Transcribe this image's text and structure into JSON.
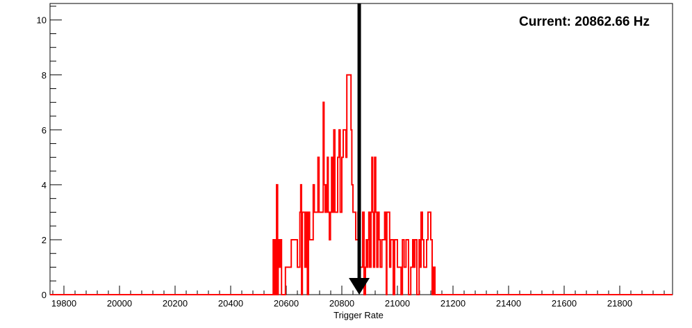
{
  "chart_data": {
    "type": "histogram",
    "title": "",
    "xlabel": "Trigger Rate",
    "ylabel": "",
    "xlim": [
      19750,
      21990
    ],
    "ylim": [
      0,
      10.6
    ],
    "xticks": [
      19800,
      20000,
      20200,
      20400,
      20600,
      20800,
      21000,
      21200,
      21400,
      21600,
      21800
    ],
    "yticks": [
      0,
      2,
      4,
      6,
      8,
      10
    ],
    "grid": false,
    "legend": "none",
    "series": [
      {
        "color": "#ff0000",
        "bin_width": 5,
        "points": [
          [
            19750,
            0
          ],
          [
            20552,
            0
          ],
          [
            20553,
            2
          ],
          [
            20557,
            0
          ],
          [
            20560,
            2
          ],
          [
            20563,
            0
          ],
          [
            20565,
            4
          ],
          [
            20569,
            0
          ],
          [
            20571,
            2
          ],
          [
            20575,
            1
          ],
          [
            20579,
            2
          ],
          [
            20583,
            0
          ],
          [
            20590,
            0
          ],
          [
            20597,
            1
          ],
          [
            20615,
            1
          ],
          [
            20618,
            2
          ],
          [
            20637,
            2
          ],
          [
            20640,
            1
          ],
          [
            20646,
            1
          ],
          [
            20649,
            3
          ],
          [
            20652,
            4
          ],
          [
            20655,
            0
          ],
          [
            20658,
            3
          ],
          [
            20664,
            3
          ],
          [
            20667,
            1
          ],
          [
            20672,
            3
          ],
          [
            20676,
            0
          ],
          [
            20680,
            3
          ],
          [
            20684,
            2
          ],
          [
            20692,
            2
          ],
          [
            20697,
            4
          ],
          [
            20701,
            3
          ],
          [
            20711,
            3
          ],
          [
            20714,
            5
          ],
          [
            20718,
            3
          ],
          [
            20730,
            3
          ],
          [
            20733,
            7
          ],
          [
            20736,
            4
          ],
          [
            20740,
            3
          ],
          [
            20742,
            4
          ],
          [
            20745,
            3
          ],
          [
            20748,
            5
          ],
          [
            20751,
            3
          ],
          [
            20755,
            2
          ],
          [
            20759,
            3
          ],
          [
            20763,
            5
          ],
          [
            20767,
            3
          ],
          [
            20771,
            6
          ],
          [
            20775,
            3
          ],
          [
            20782,
            3
          ],
          [
            20785,
            5
          ],
          [
            20790,
            6
          ],
          [
            20794,
            3
          ],
          [
            20800,
            5
          ],
          [
            20805,
            6
          ],
          [
            20812,
            6
          ],
          [
            20815,
            5
          ],
          [
            20818,
            8
          ],
          [
            20830,
            8
          ],
          [
            20833,
            6
          ],
          [
            20836,
            4
          ],
          [
            20840,
            3
          ],
          [
            20846,
            3
          ],
          [
            20850,
            2
          ],
          [
            20855,
            2
          ],
          [
            20858,
            3
          ],
          [
            20862,
            1
          ],
          [
            20868,
            1
          ],
          [
            20875,
            3
          ],
          [
            20880,
            0
          ],
          [
            20885,
            1
          ],
          [
            20888,
            2
          ],
          [
            20891,
            1
          ],
          [
            20894,
            2
          ],
          [
            20897,
            3
          ],
          [
            20900,
            1
          ],
          [
            20905,
            3
          ],
          [
            20908,
            5
          ],
          [
            20911,
            3
          ],
          [
            20914,
            1
          ],
          [
            20918,
            5
          ],
          [
            20922,
            3
          ],
          [
            20926,
            1
          ],
          [
            20930,
            3
          ],
          [
            20934,
            2
          ],
          [
            20938,
            1
          ],
          [
            20944,
            2
          ],
          [
            20948,
            2
          ],
          [
            20954,
            3
          ],
          [
            20958,
            2
          ],
          [
            20960,
            0
          ],
          [
            20962,
            3
          ],
          [
            20968,
            3
          ],
          [
            20972,
            1
          ],
          [
            20976,
            2
          ],
          [
            20980,
            2
          ],
          [
            20985,
            0
          ],
          [
            20990,
            2
          ],
          [
            20995,
            2
          ],
          [
            21000,
            1
          ],
          [
            21010,
            1
          ],
          [
            21013,
            0
          ],
          [
            21018,
            2
          ],
          [
            21024,
            1
          ],
          [
            21028,
            1
          ],
          [
            21031,
            2
          ],
          [
            21035,
            2
          ],
          [
            21040,
            0
          ],
          [
            21044,
            0
          ],
          [
            21048,
            1
          ],
          [
            21052,
            1
          ],
          [
            21055,
            2
          ],
          [
            21060,
            1
          ],
          [
            21063,
            2
          ],
          [
            21068,
            2
          ],
          [
            21070,
            0
          ],
          [
            21075,
            0
          ],
          [
            21078,
            2
          ],
          [
            21080,
            1
          ],
          [
            21085,
            3
          ],
          [
            21090,
            2
          ],
          [
            21095,
            1
          ],
          [
            21100,
            1
          ],
          [
            21105,
            2
          ],
          [
            21110,
            3
          ],
          [
            21115,
            3
          ],
          [
            21120,
            2
          ],
          [
            21125,
            0
          ],
          [
            21130,
            1
          ],
          [
            21135,
            0
          ],
          [
            21140,
            0
          ],
          [
            21990,
            0
          ]
        ]
      }
    ],
    "annotations": [
      {
        "type": "arrow",
        "x": 20862.66,
        "y_from": 10.6,
        "y_to": 0
      }
    ]
  },
  "current_label": "Current: 20862.66 Hz"
}
